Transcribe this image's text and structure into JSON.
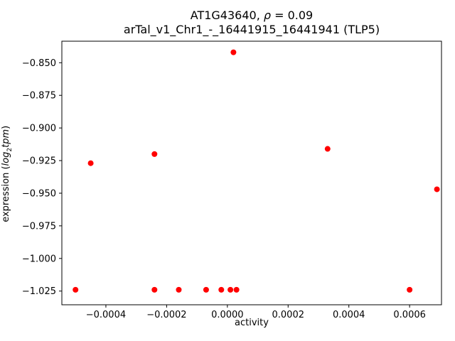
{
  "figure": {
    "title": {
      "pre": "AT1G43640, ",
      "rho": "ρ",
      "post": " = 0.09"
    },
    "subtitle": "arTal_v1_Chr1_-_16441915_16441941 (TLP5)",
    "xlabel": "activity",
    "ylabel": {
      "prefix": "expression (",
      "func": "log",
      "sub": "2",
      "var": "tpm",
      "suffix": ")"
    }
  },
  "chart_data": {
    "type": "scatter",
    "title": "AT1G43640, ρ = 0.09",
    "subtitle": "arTal_v1_Chr1_-_16441915_16441941 (TLP5)",
    "xlabel": "activity",
    "ylabel": "expression (log₂tpm)",
    "marker_color": "#ff0000",
    "grid": false,
    "legend": "none",
    "xlim": [
      -0.000545,
      0.000705
    ],
    "ylim": [
      -1.0355,
      -0.8335
    ],
    "xticks": [
      -0.0004,
      -0.0002,
      0.0,
      0.0002,
      0.0004,
      0.0006
    ],
    "xtick_labels": [
      "−0.0004",
      "−0.0002",
      "0.0000",
      "0.0002",
      "0.0004",
      "0.0006"
    ],
    "yticks": [
      -0.85,
      -0.875,
      -0.9,
      -0.925,
      -0.95,
      -0.975,
      -1.0,
      -1.025
    ],
    "ytick_labels": [
      "−0.850",
      "−0.875",
      "−0.900",
      "−0.925",
      "−0.950",
      "−0.975",
      "−1.000",
      "−1.025"
    ],
    "points": [
      {
        "x": 2e-05,
        "y": -0.842
      },
      {
        "x": -0.00045,
        "y": -0.927
      },
      {
        "x": -0.00024,
        "y": -0.92
      },
      {
        "x": 0.00033,
        "y": -0.916
      },
      {
        "x": 0.00069,
        "y": -0.947
      },
      {
        "x": -0.0005,
        "y": -1.024
      },
      {
        "x": -0.00024,
        "y": -1.024
      },
      {
        "x": -0.00016,
        "y": -1.024
      },
      {
        "x": -7e-05,
        "y": -1.024
      },
      {
        "x": -2e-05,
        "y": -1.024
      },
      {
        "x": 1e-05,
        "y": -1.024
      },
      {
        "x": 3e-05,
        "y": -1.024
      },
      {
        "x": 0.0006,
        "y": -1.024
      }
    ]
  }
}
